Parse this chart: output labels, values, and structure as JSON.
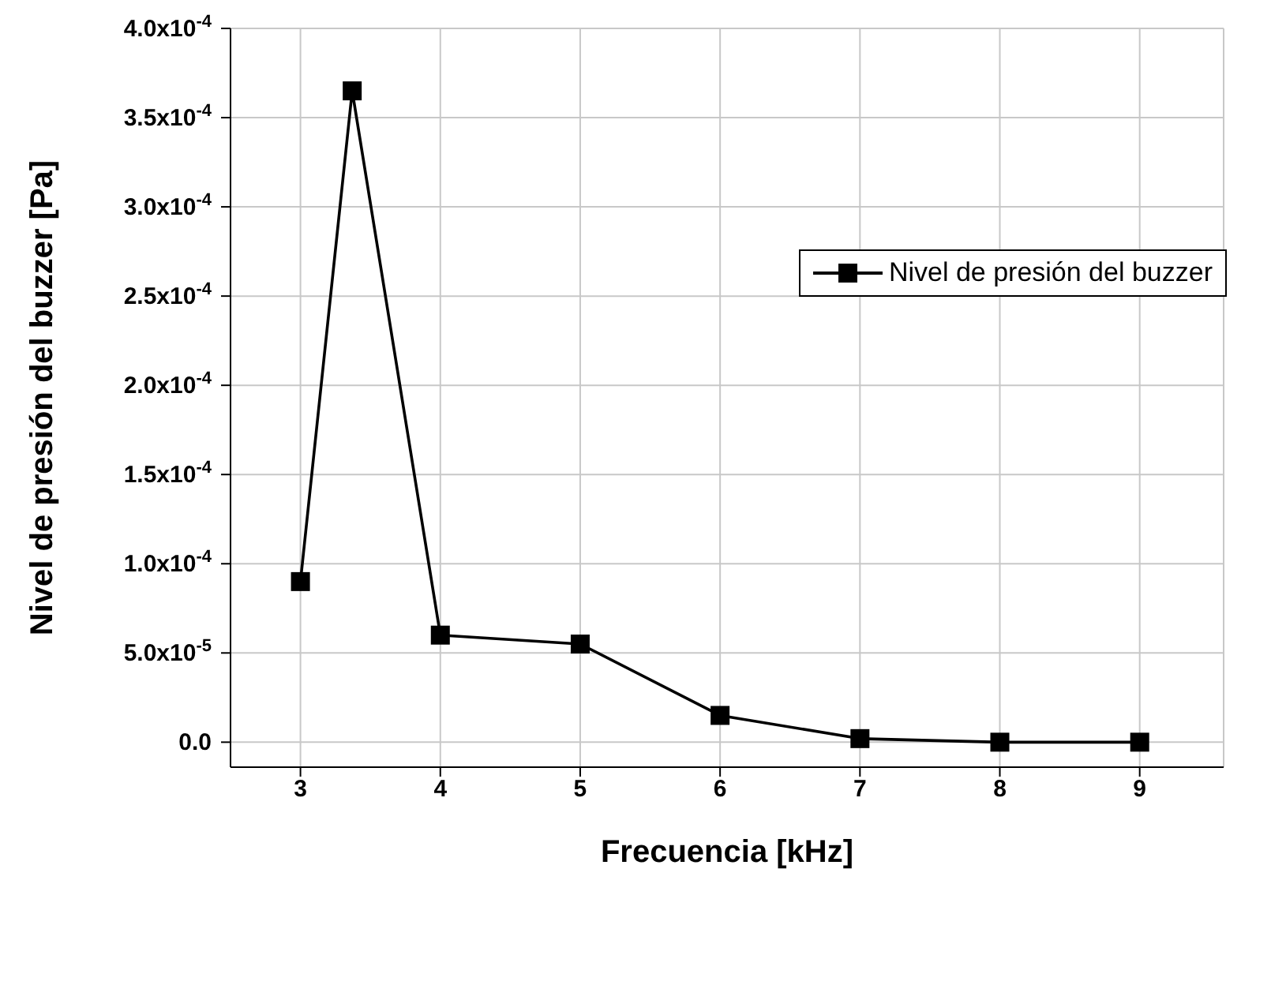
{
  "chart_data": {
    "type": "line",
    "xlabel": "Frecuencia [kHz]",
    "ylabel": "Nivel de presión del buzzer [Pa]",
    "x": [
      3,
      3.37,
      4,
      5,
      6,
      7,
      8,
      9
    ],
    "series": [
      {
        "name": "Nivel de presión del buzzer",
        "color": "#000000",
        "values": [
          9e-05,
          0.000365,
          6e-05,
          5.5e-05,
          1.5e-05,
          2e-06,
          0,
          0
        ]
      }
    ],
    "xlim": [
      2.5,
      9.6
    ],
    "xticks": [
      3,
      4,
      5,
      6,
      7,
      8,
      9
    ],
    "ylim": [
      -1.4e-05,
      0.0004
    ],
    "yticks": [
      {
        "value": 0,
        "label": "0.0"
      },
      {
        "value": 5e-05,
        "label": "5.0x10$^{-5}$"
      },
      {
        "value": 0.0001,
        "label": "1.0x10$^{-4}$"
      },
      {
        "value": 0.00015,
        "label": "1.5x10$^{-4}$"
      },
      {
        "value": 0.0002,
        "label": "2.0x10$^{-4}$"
      },
      {
        "value": 0.00025,
        "label": "2.5x10$^{-4}$"
      },
      {
        "value": 0.0003,
        "label": "3.0x10$^{-4}$"
      },
      {
        "value": 0.00035,
        "label": "3.5x10$^{-4}$"
      },
      {
        "value": 0.0004,
        "label": "4.0x10$^{-4}$"
      }
    ],
    "grid": true,
    "legend": "top right",
    "marker": "square",
    "line_style": "solid"
  }
}
